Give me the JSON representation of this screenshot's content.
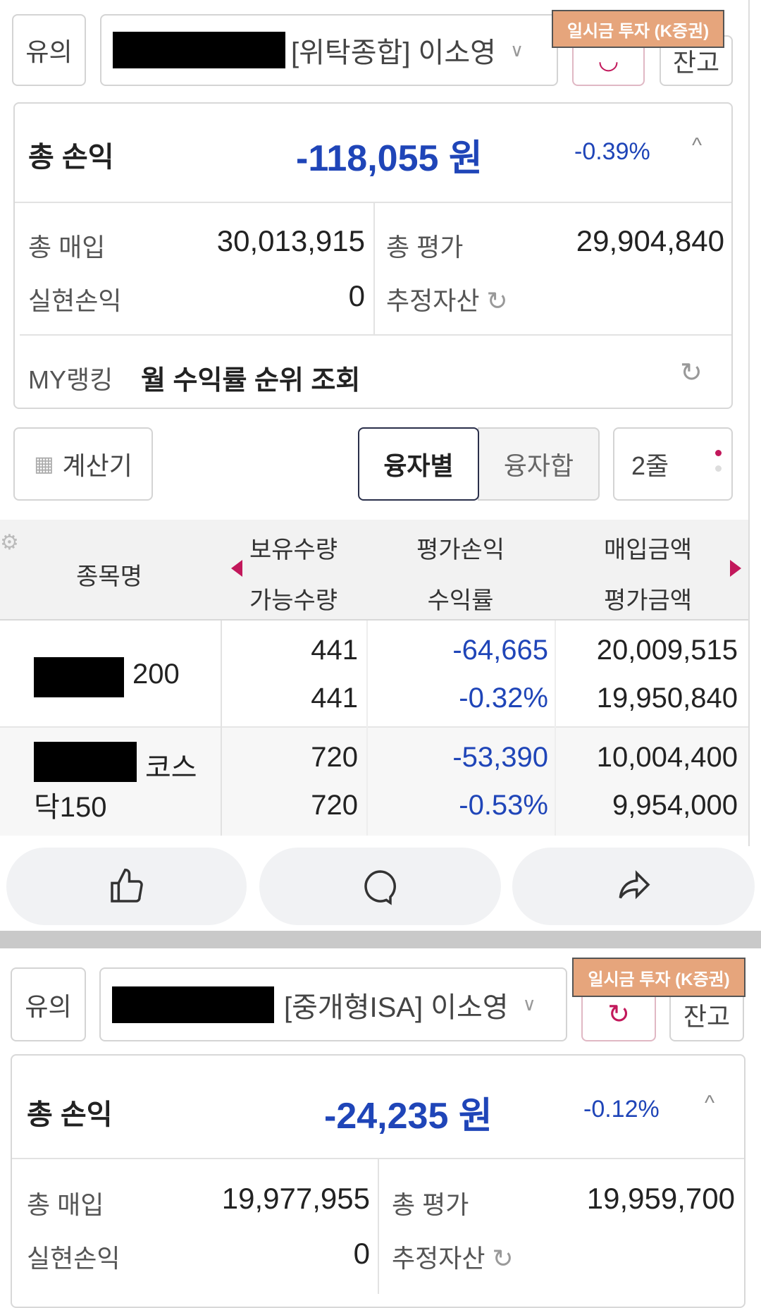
{
  "panels": [
    {
      "caution_label": "유의",
      "account_name": "[위탁종합] 이소영",
      "badge": "일시금 투자 (K증권)",
      "balance_label": "잔고",
      "total_pl_label": "총 손익",
      "total_pl_value": "-118,055",
      "total_pl_unit": "원",
      "total_pl_rate": "-0.39%",
      "purchase_label": "총 매입",
      "purchase_value": "30,013,915",
      "eval_label": "총 평가",
      "eval_value": "29,904,840",
      "realized_label": "실현손익",
      "realized_value": "0",
      "estimated_label": "추정자산",
      "ranking_label": "MY랭킹",
      "ranking_link": "월 수익률 순위 조회"
    },
    {
      "caution_label": "유의",
      "account_name": "[중개형ISA] 이소영",
      "badge": "일시금 투자 (K증권)",
      "balance_label": "잔고",
      "total_pl_label": "총 손익",
      "total_pl_value": "-24,235",
      "total_pl_unit": "원",
      "total_pl_rate": "-0.12%",
      "purchase_label": "총 매입",
      "purchase_value": "19,977,955",
      "eval_label": "총 평가",
      "eval_value": "19,959,700",
      "realized_label": "실현손익",
      "realized_value": "0",
      "estimated_label": "추정자산"
    }
  ],
  "toolbar": {
    "calculator": "계산기",
    "by_loan": "융자별",
    "loan_sum": "융자합",
    "rows": "2줄"
  },
  "table": {
    "headers": {
      "name": "종목명",
      "hold_qty": "보유수량",
      "avail_qty": "가능수량",
      "eval_pl": "평가손익",
      "return_rate": "수익률",
      "purchase_amt": "매입금액",
      "eval_amt": "평가금액"
    },
    "rows": [
      {
        "name": "200",
        "hold_qty": "441",
        "avail_qty": "441",
        "eval_pl": "-64,665",
        "return_rate": "-0.32%",
        "purchase_amt": "20,009,515",
        "eval_amt": "19,950,840"
      },
      {
        "name_a": "코스",
        "name_b": "닥150",
        "hold_qty": "720",
        "avail_qty": "720",
        "eval_pl": "-53,390",
        "return_rate": "-0.53%",
        "purchase_amt": "10,004,400",
        "eval_amt": "9,954,000"
      }
    ]
  },
  "colors": {
    "negative": "#1f45b8",
    "badge": "#e6a57c",
    "accent": "#c2185b"
  },
  "actions": [
    "thumbs-up-icon",
    "comment-icon",
    "share-icon"
  ]
}
